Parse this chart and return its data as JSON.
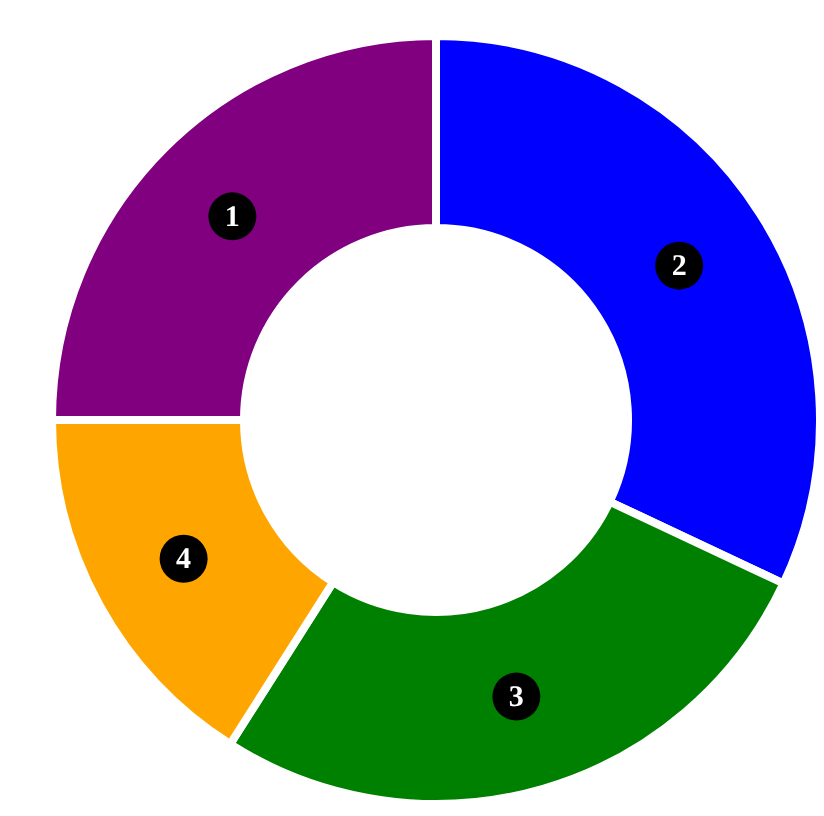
{
  "chart_data": {
    "type": "donut",
    "categories": [
      "1",
      "2",
      "3",
      "4"
    ],
    "values": [
      25,
      32,
      27,
      16
    ],
    "colors": [
      "#800080",
      "#0000ff",
      "#008000",
      "#ffa500"
    ],
    "legend": false
  }
}
